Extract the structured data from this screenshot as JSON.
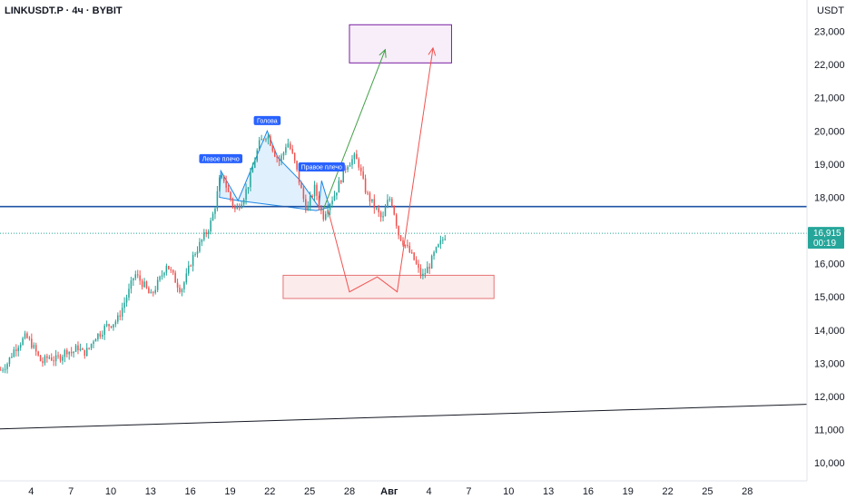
{
  "header": {
    "title": "LINKUSDT.P · 4ч · BYBIT"
  },
  "chart_data": {
    "type": "candlestick",
    "currency": "USDT",
    "ylim": [
      9400,
      23700
    ],
    "y_ticks": [
      10000,
      11000,
      12000,
      13000,
      14000,
      15000,
      16000,
      17000,
      18000,
      19000,
      20000,
      21000,
      22000,
      23000
    ],
    "y_tick_labels": [
      "10,000",
      "11,000",
      "12,000",
      "13,000",
      "14,000",
      "15,000",
      "16,000",
      "17,000",
      "18,000",
      "19,000",
      "20,000",
      "21,000",
      "22,000",
      "23,000"
    ],
    "x_ticks": [
      {
        "label": "4",
        "t": 1
      },
      {
        "label": "7",
        "t": 4
      },
      {
        "label": "10",
        "t": 7
      },
      {
        "label": "13",
        "t": 10
      },
      {
        "label": "16",
        "t": 13
      },
      {
        "label": "19",
        "t": 16
      },
      {
        "label": "22",
        "t": 19
      },
      {
        "label": "25",
        "t": 22
      },
      {
        "label": "28",
        "t": 25
      },
      {
        "label": "Авг",
        "t": 28,
        "bold": true
      },
      {
        "label": "4",
        "t": 31
      },
      {
        "label": "7",
        "t": 34
      },
      {
        "label": "10",
        "t": 37
      },
      {
        "label": "13",
        "t": 40
      },
      {
        "label": "16",
        "t": 43
      },
      {
        "label": "19",
        "t": 46
      },
      {
        "label": "22",
        "t": 49
      },
      {
        "label": "25",
        "t": 52
      },
      {
        "label": "28",
        "t": 55
      }
    ],
    "xlim": [
      -1.35,
      59.5
    ],
    "last_price": {
      "label": "16,915",
      "timer": "00:19",
      "value": 16915
    },
    "close_path": [
      [
        -1.3,
        12800
      ],
      [
        -0.8,
        13000
      ],
      [
        -0.3,
        13400
      ],
      [
        0.1,
        13600
      ],
      [
        0.6,
        13800
      ],
      [
        1.0,
        13600
      ],
      [
        1.4,
        13300
      ],
      [
        1.8,
        13000
      ],
      [
        2.3,
        13200
      ],
      [
        2.8,
        13100
      ],
      [
        3.2,
        13200
      ],
      [
        3.7,
        13400
      ],
      [
        4.1,
        13300
      ],
      [
        4.5,
        13500
      ],
      [
        4.9,
        13300
      ],
      [
        5.3,
        13400
      ],
      [
        5.8,
        13800
      ],
      [
        6.2,
        13900
      ],
      [
        6.6,
        14100
      ],
      [
        7.1,
        14200
      ],
      [
        7.5,
        14300
      ],
      [
        8.0,
        14800
      ],
      [
        8.4,
        15200
      ],
      [
        8.8,
        15700
      ],
      [
        9.2,
        15500
      ],
      [
        9.6,
        15300
      ],
      [
        10.0,
        15000
      ],
      [
        10.4,
        15300
      ],
      [
        10.8,
        15600
      ],
      [
        11.2,
        16000
      ],
      [
        11.6,
        15700
      ],
      [
        12.0,
        15400
      ],
      [
        12.3,
        15200
      ],
      [
        12.7,
        15600
      ],
      [
        13.0,
        16000
      ],
      [
        13.3,
        16300
      ],
      [
        13.6,
        16500
      ],
      [
        14.0,
        16800
      ],
      [
        14.3,
        17000
      ],
      [
        14.6,
        17300
      ],
      [
        14.9,
        17800
      ],
      [
        15.2,
        18500
      ],
      [
        15.5,
        18600
      ],
      [
        15.8,
        18200
      ],
      [
        16.1,
        17900
      ],
      [
        16.4,
        17600
      ],
      [
        16.7,
        17800
      ],
      [
        17.0,
        18000
      ],
      [
        17.3,
        18300
      ],
      [
        17.6,
        18700
      ],
      [
        17.9,
        19200
      ],
      [
        18.2,
        19600
      ],
      [
        18.5,
        19800
      ],
      [
        18.8,
        19900
      ],
      [
        19.1,
        19600
      ],
      [
        19.4,
        19300
      ],
      [
        19.7,
        19100
      ],
      [
        20.0,
        19300
      ],
      [
        20.3,
        19700
      ],
      [
        20.6,
        19400
      ],
      [
        20.9,
        19000
      ],
      [
        21.2,
        18500
      ],
      [
        21.5,
        18000
      ],
      [
        21.8,
        17600
      ],
      [
        22.1,
        18000
      ],
      [
        22.4,
        18300
      ],
      [
        22.7,
        17800
      ],
      [
        23.0,
        17400
      ],
      [
        23.3,
        17700
      ],
      [
        23.6,
        17900
      ],
      [
        23.9,
        18100
      ],
      [
        24.2,
        18400
      ],
      [
        24.5,
        18700
      ],
      [
        24.8,
        19000
      ],
      [
        25.1,
        19100
      ],
      [
        25.4,
        19200
      ],
      [
        25.7,
        19000
      ],
      [
        26.0,
        18500
      ],
      [
        26.3,
        18100
      ],
      [
        26.6,
        17900
      ],
      [
        26.9,
        17700
      ],
      [
        27.2,
        17500
      ],
      [
        27.5,
        17300
      ],
      [
        27.8,
        17800
      ],
      [
        28.1,
        18000
      ],
      [
        28.4,
        17500
      ],
      [
        28.7,
        16900
      ],
      [
        29.0,
        16700
      ],
      [
        29.3,
        16500
      ],
      [
        29.6,
        16300
      ],
      [
        29.9,
        16100
      ],
      [
        30.2,
        15800
      ],
      [
        30.5,
        15600
      ],
      [
        30.8,
        15800
      ],
      [
        31.1,
        16000
      ],
      [
        31.4,
        16300
      ],
      [
        31.7,
        16500
      ],
      [
        32.0,
        16700
      ],
      [
        32.3,
        16915
      ]
    ],
    "horizontal_levels": [
      {
        "value": 17720,
        "color": "#1e53a3",
        "width": 1.6,
        "dashed": false
      },
      {
        "value": 16915,
        "color": "#26a69a",
        "width": 1,
        "dashed": true
      }
    ],
    "trendline": {
      "from": [
        -1.35,
        11020
      ],
      "to": [
        59.5,
        11760
      ],
      "color": "#131722"
    },
    "pattern": {
      "labels": [
        "Левое плечо",
        "Голова",
        "Правое плечо"
      ],
      "points": [
        [
          15.2,
          18000
        ],
        [
          15.3,
          18800
        ],
        [
          16.6,
          17900
        ],
        [
          18.8,
          20000
        ],
        [
          19.6,
          19200
        ],
        [
          21.3,
          18500
        ],
        [
          22.7,
          17700
        ],
        [
          22.9,
          18500
        ],
        [
          23.5,
          17700
        ],
        [
          22.5,
          17600
        ],
        [
          16.6,
          17900
        ]
      ],
      "fill": "#bbdefb"
    },
    "zones": [
      {
        "name": "target-zone",
        "t0": 25.0,
        "t1": 32.7,
        "v0": 22050,
        "v1": 23200,
        "stroke": "#7b1fa2",
        "fill": "rgba(206,147,216,0.16)"
      },
      {
        "name": "support-zone",
        "t0": 20.0,
        "t1": 35.9,
        "v0": 14950,
        "v1": 15650,
        "stroke": "#e57373",
        "fill": "rgba(239,154,154,0.2)"
      }
    ],
    "projections": [
      {
        "name": "green-arrow",
        "color": "#43a047",
        "points": [
          [
            23.0,
            17600
          ],
          [
            27.7,
            22450
          ]
        ]
      },
      {
        "name": "red-arrow",
        "color": "#ef5350",
        "points": [
          [
            23.4,
            17600
          ],
          [
            25.0,
            15150
          ],
          [
            27.1,
            15600
          ],
          [
            28.6,
            15150
          ],
          [
            31.3,
            22500
          ]
        ]
      }
    ]
  }
}
